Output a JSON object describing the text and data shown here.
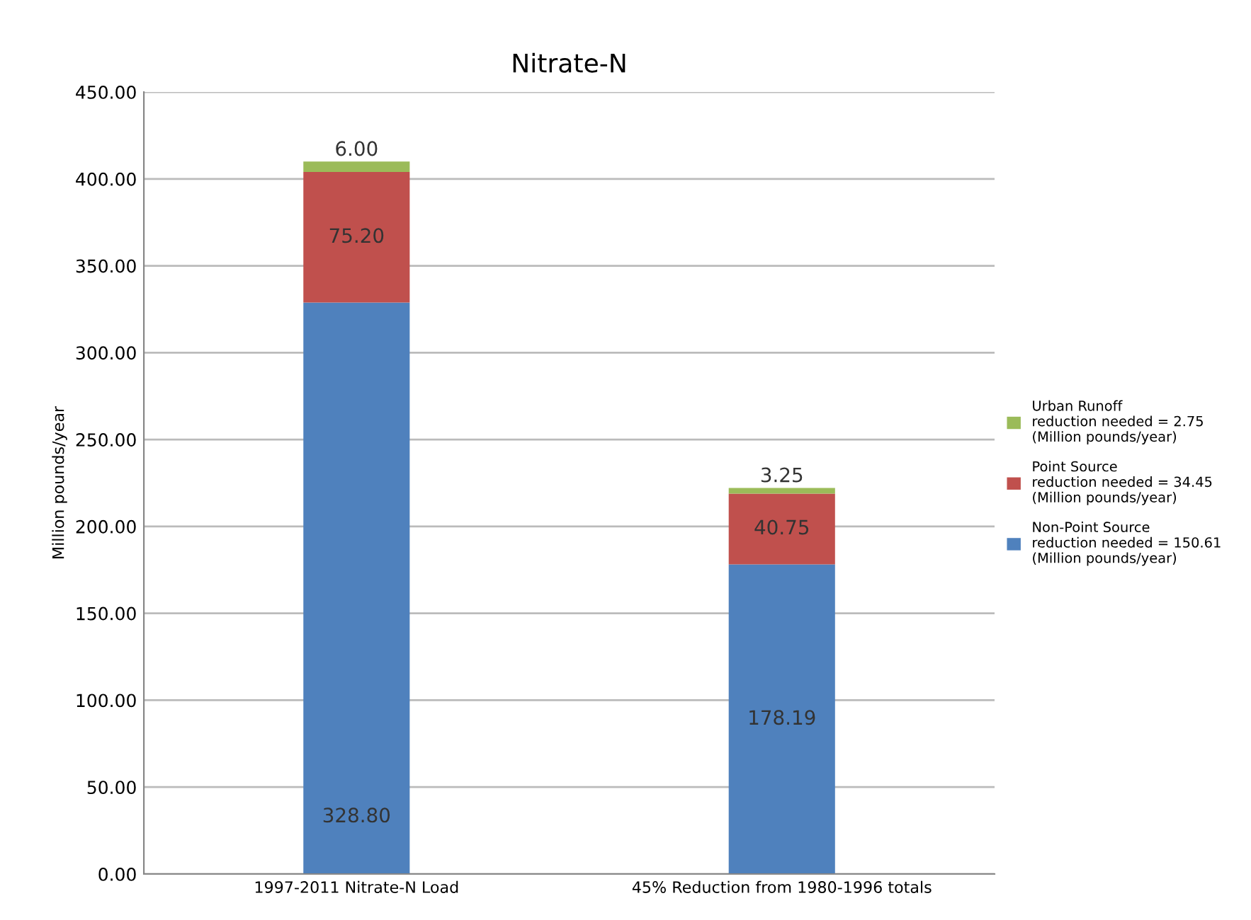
{
  "chart_data": {
    "type": "bar",
    "title": "Nitrate-N",
    "ylabel": "Million pounds/year",
    "categories": [
      "1997-2011 Nitrate-N Load",
      "45% Reduction from 1980-1996 totals"
    ],
    "stacked": true,
    "series": [
      {
        "name": "Non-Point Source\nreduction needed = 150.61\n(Million pounds/year)",
        "color": "#4f81bd",
        "values": [
          328.8,
          178.19
        ],
        "value_labels": [
          "328.80",
          "178.19"
        ]
      },
      {
        "name": "Point Source\nreduction needed = 34.45\n(Million pounds/year)",
        "color": "#c0504d",
        "values": [
          75.2,
          40.75
        ],
        "value_labels": [
          "75.20",
          "40.75"
        ]
      },
      {
        "name": "Urban Runoff\nreduction needed = 2.75\n(Million pounds/year)",
        "color": "#9bbb59",
        "values": [
          6.0,
          3.25
        ],
        "value_labels": [
          "6.00",
          "3.25"
        ]
      }
    ],
    "ylim": [
      0,
      450
    ],
    "yticks": [
      {
        "value": 0,
        "label": "0.00"
      },
      {
        "value": 50,
        "label": "50.00"
      },
      {
        "value": 100,
        "label": "100.00"
      },
      {
        "value": 150,
        "label": "150.00"
      },
      {
        "value": 200,
        "label": "200.00"
      },
      {
        "value": 250,
        "label": "250.00"
      },
      {
        "value": 300,
        "label": "300.00"
      },
      {
        "value": 350,
        "label": "350.00"
      },
      {
        "value": 400,
        "label": "400.00"
      },
      {
        "value": 450,
        "label": "450.00"
      }
    ],
    "grid": "y",
    "legend": "right"
  }
}
